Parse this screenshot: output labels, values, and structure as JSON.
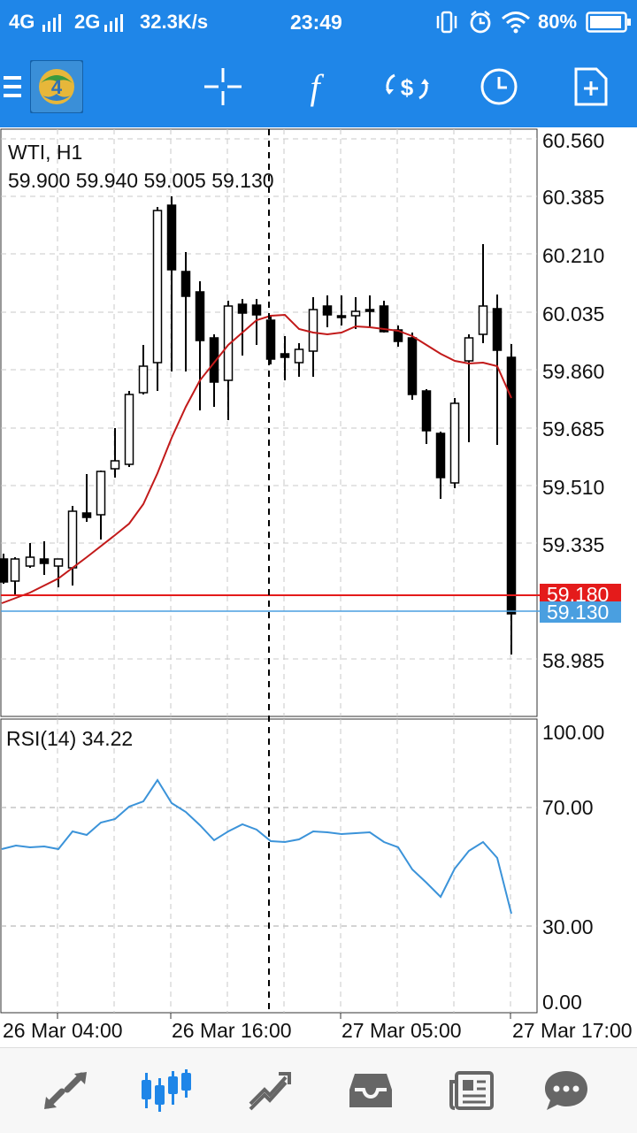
{
  "status_bar": {
    "network1": "4G",
    "network2": "2G",
    "speed": "32.3K/s",
    "time": "23:49",
    "battery": "80%"
  },
  "toolbar": {
    "icons": [
      "menu-icon",
      "metatrader-logo",
      "crosshair-icon",
      "indicators-icon",
      "symbol-change-icon",
      "timeframe-icon",
      "new-order-icon"
    ],
    "indicators_glyph": "f"
  },
  "chart": {
    "symbol": "WTI, H1",
    "ohlc": "59.900 59.940 59.005 59.130",
    "price_axis": [
      "60.560",
      "60.385",
      "60.210",
      "60.035",
      "59.860",
      "59.685",
      "59.510",
      "59.335",
      "58.985"
    ],
    "bid_price": "59.180",
    "last_price": "59.130",
    "colors": {
      "bid_line": "#e41b1b",
      "last_line": "#4a9fe0",
      "ma_line": "#c21a1a",
      "rsi_line": "#3b93d9"
    },
    "rsi_label": "RSI(14) 34.22",
    "rsi_axis": [
      "100.00",
      "70.00",
      "30.00",
      "0.00"
    ],
    "time_axis": [
      "26 Mar 04:00",
      "26 Mar 16:00",
      "27 Mar 05:00",
      "27 Mar 17:00"
    ]
  },
  "bottom_nav": {
    "items": [
      "quotes-icon",
      "chart-icon",
      "trade-icon",
      "history-icon",
      "news-icon",
      "messages-icon"
    ],
    "active": "chart-icon",
    "active_color": "#1f86e8",
    "inactive_color": "#666666"
  }
}
